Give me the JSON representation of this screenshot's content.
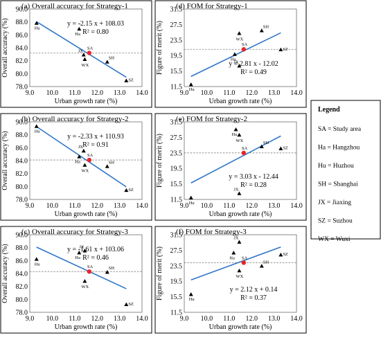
{
  "chart_data": [
    {
      "type": "scatter",
      "title": "(a) Overall accuracy for Strategy-1",
      "xlabel": "Urban growth rate (%)",
      "ylabel": "Overall accuracy (%)",
      "xlim": [
        9.0,
        14.0
      ],
      "ylim": [
        78.0,
        90.0
      ],
      "xticks": [
        "9.0",
        "10.0",
        "11.0",
        "12.0",
        "13.0",
        "14.0"
      ],
      "yticks": [
        "78.0",
        "80.0",
        "82.0",
        "84.0",
        "86.0",
        "88.0",
        "90.0"
      ],
      "equation": "y = -2.15 x + 108.03",
      "r2": "R² = 0.80",
      "fit": {
        "slope": -2.15,
        "intercept": 108.03
      },
      "study_area_level": 83.2,
      "points": [
        {
          "label": "Hu",
          "x": 9.3,
          "y": 87.8
        },
        {
          "label": "Ha",
          "x": 11.2,
          "y": 86.9
        },
        {
          "label": "JX",
          "x": 11.4,
          "y": 82.9
        },
        {
          "label": "WX",
          "x": 11.45,
          "y": 82.2
        },
        {
          "label": "SH",
          "x": 12.45,
          "y": 81.8
        },
        {
          "label": "SZ",
          "x": 13.3,
          "y": 78.9
        }
      ],
      "study_area": {
        "label": "SA",
        "x": 11.65,
        "y": 83.2
      }
    },
    {
      "type": "scatter",
      "title": "(d) FOM for Strategy-1",
      "xlabel": "Urban growth rate (%)",
      "ylabel": "Figure of merit (%)",
      "xlim": [
        9.0,
        14.0
      ],
      "ylim": [
        11.5,
        31.5
      ],
      "xticks": [
        "9.0",
        "10.0",
        "11.0",
        "12.0",
        "13.0",
        "14.0"
      ],
      "yticks": [
        "11.5",
        "15.5",
        "19.5",
        "23.5",
        "27.5",
        "31.5"
      ],
      "equation": "y = 2.81 x - 12.02",
      "r2": "R² = 0.49",
      "fit": {
        "slope": 2.81,
        "intercept": -12.02
      },
      "study_area_level": 21.1,
      "points": [
        {
          "label": "Hu",
          "x": 9.3,
          "y": 12.0
        },
        {
          "label": "WX",
          "x": 11.45,
          "y": 25.2
        },
        {
          "label": "SH",
          "x": 12.45,
          "y": 25.9
        },
        {
          "label": "Ha",
          "x": 11.25,
          "y": 19.8
        },
        {
          "label": "JX",
          "x": 11.45,
          "y": 16.8
        },
        {
          "label": "SZ",
          "x": 13.3,
          "y": 21.0
        }
      ],
      "study_area": {
        "label": "SA",
        "x": 11.65,
        "y": 21.1
      }
    },
    {
      "type": "scatter",
      "title": "(b) Overall accuracy for Strategy-2",
      "xlabel": "Urban growth rate (%)",
      "ylabel": "Overall accuracy (%)",
      "xlim": [
        9.0,
        14.0
      ],
      "ylim": [
        78.0,
        90.0
      ],
      "xticks": [
        "9.0",
        "10.0",
        "11.0",
        "12.0",
        "13.0",
        "14.0"
      ],
      "yticks": [
        "78.0",
        "80.0",
        "82.0",
        "84.0",
        "86.0",
        "88.0",
        "90.0"
      ],
      "equation": "y = -2.33 x + 110.93",
      "r2": "R² = 0.91",
      "fit": {
        "slope": -2.33,
        "intercept": 110.93
      },
      "study_area_level": 84.1,
      "points": [
        {
          "label": "Hu",
          "x": 9.3,
          "y": 89.3
        },
        {
          "label": "JX",
          "x": 11.4,
          "y": 85.5
        },
        {
          "label": "Ha",
          "x": 11.2,
          "y": 84.6
        },
        {
          "label": "WX",
          "x": 11.45,
          "y": 83.3
        },
        {
          "label": "SH",
          "x": 12.45,
          "y": 83.1
        },
        {
          "label": "SZ",
          "x": 13.3,
          "y": 79.4
        }
      ],
      "study_area": {
        "label": "SA",
        "x": 11.65,
        "y": 84.1
      }
    },
    {
      "type": "scatter",
      "title": "(e) FOM for Strategy-2",
      "xlabel": "Urban growth rate (%)",
      "ylabel": "Figure of merit (%)",
      "xlim": [
        9.0,
        14.0
      ],
      "ylim": [
        11.5,
        31.5
      ],
      "xticks": [
        "9.0",
        "10.0",
        "11.0",
        "12.0",
        "13.0",
        "14.0"
      ],
      "yticks": [
        "11.5",
        "15.5",
        "19.5",
        "23.5",
        "27.5",
        "31.5"
      ],
      "equation": "y = 3.03 x - 12.44",
      "r2": "R² = 0.28",
      "fit": {
        "slope": 3.03,
        "intercept": -12.44
      },
      "study_area_level": 23.5,
      "points": [
        {
          "label": "Ha",
          "x": 11.3,
          "y": 29.5
        },
        {
          "label": "WX",
          "x": 11.45,
          "y": 28.1
        },
        {
          "label": "SH",
          "x": 12.45,
          "y": 25.1
        },
        {
          "label": "SZ",
          "x": 13.3,
          "y": 24.6
        },
        {
          "label": "JX",
          "x": 11.45,
          "y": 13.0
        },
        {
          "label": "Hu",
          "x": 9.3,
          "y": 11.9
        }
      ],
      "study_area": {
        "label": "SA",
        "x": 11.65,
        "y": 23.5
      }
    },
    {
      "type": "scatter",
      "title": "(c) Overall accuracy for Strategy-3",
      "xlabel": "Urban growth rate (%)",
      "ylabel": "Overall accuracy (%)",
      "xlim": [
        9.0,
        14.0
      ],
      "ylim": [
        78.0,
        90.0
      ],
      "xticks": [
        "9.0",
        "10.0",
        "11.0",
        "12.0",
        "13.0",
        "14.0"
      ],
      "yticks": [
        "78.0",
        "80.0",
        "82.0",
        "84.0",
        "86.0",
        "88.0",
        "90.0"
      ],
      "equation": "y = -1.61 x + 103.06",
      "r2": "R² = 0.46",
      "fit": {
        "slope": -1.61,
        "intercept": 103.06
      },
      "study_area_level": 84.3,
      "points": [
        {
          "label": "Hu",
          "x": 9.3,
          "y": 86.2
        },
        {
          "label": "JX",
          "x": 11.45,
          "y": 87.5
        },
        {
          "label": "Ha",
          "x": 11.2,
          "y": 87.2
        },
        {
          "label": "SH",
          "x": 12.45,
          "y": 84.2
        },
        {
          "label": "WX",
          "x": 11.45,
          "y": 82.8
        },
        {
          "label": "SZ",
          "x": 13.3,
          "y": 79.2
        }
      ],
      "study_area": {
        "label": "SA",
        "x": 11.65,
        "y": 84.3
      }
    },
    {
      "type": "scatter",
      "title": "(f) FOM for Strategy-3",
      "xlabel": "Urban growth rate (%)",
      "ylabel": "Figure of merit (%)",
      "xlim": [
        9.0,
        14.0
      ],
      "ylim": [
        11.5,
        31.5
      ],
      "xticks": [
        "9.0",
        "10.0",
        "11.0",
        "12.0",
        "13.0",
        "14.0"
      ],
      "yticks": [
        "11.5",
        "15.5",
        "19.5",
        "23.5",
        "27.5",
        "31.5"
      ],
      "equation": "y = 2.12 x + 0.14",
      "r2": "R² = 0.37",
      "fit": {
        "slope": 2.12,
        "intercept": 0.14
      },
      "study_area_level": 24.3,
      "points": [
        {
          "label": "JX",
          "x": 11.45,
          "y": 29.6
        },
        {
          "label": "Ha",
          "x": 11.2,
          "y": 26.8
        },
        {
          "label": "SZ",
          "x": 13.3,
          "y": 26.3
        },
        {
          "label": "SH",
          "x": 12.45,
          "y": 23.4
        },
        {
          "label": "WX",
          "x": 11.45,
          "y": 22.2
        },
        {
          "label": "Hu",
          "x": 9.3,
          "y": 16.1
        }
      ],
      "study_area": {
        "label": "SA",
        "x": 11.65,
        "y": 24.3
      }
    }
  ],
  "legend": {
    "title": "Legend",
    "items": [
      "SA = Study area",
      "Ha = Hangzhou",
      "Hu = Huzhou",
      "SH = Shanghai",
      "JX = Jiaxing",
      "SZ = Suzhou",
      "WX = Wuxi"
    ]
  },
  "colors": {
    "fit_line": "#2e75c8",
    "study_area_marker": "#e8262a",
    "point_marker": "#000000",
    "reference_line": "#7f7f7f"
  }
}
